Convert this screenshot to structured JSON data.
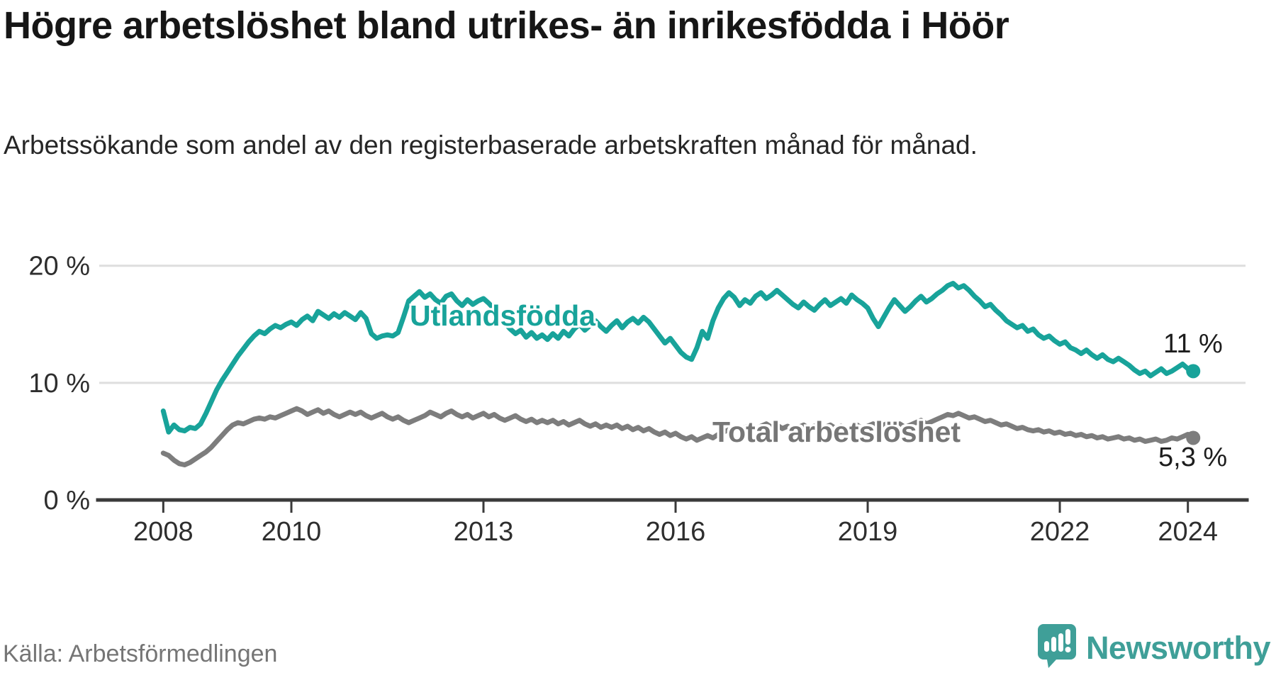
{
  "header": {
    "title": "Högre arbetslöshet bland utrikes- än inrikesfödda i Höör",
    "subtitle": "Arbetssökande som andel av den registerbaserade arbetskraften månad för månad."
  },
  "footer": {
    "source": "Källa: Arbetsförmedlingen",
    "brand_name": "Newsworthy"
  },
  "colors": {
    "series_utlandsfodda": "#18a39a",
    "series_total": "#7d7d7d",
    "grid": "#dedede",
    "axis": "#3a3a3a",
    "brand_teal": "#3f9f98"
  },
  "chart_data": {
    "type": "line",
    "title": "Högre arbetslöshet bland utrikes- än inrikesfödda i Höör",
    "subtitle": "Arbetssökande som andel av den registerbaserade arbetskraften månad för månad.",
    "x_unit": "monthly, Jan 2008 - Feb 2024",
    "x_start_year": 2008,
    "xlim": [
      2007.0,
      2024.9
    ],
    "ylim": [
      0,
      21.8
    ],
    "grid": "horizontal-only",
    "x_ticks": [
      {
        "value": 2008,
        "label": "2008"
      },
      {
        "value": 2010,
        "label": "2010"
      },
      {
        "value": 2013,
        "label": "2013"
      },
      {
        "value": 2016,
        "label": "2016"
      },
      {
        "value": 2019,
        "label": "2019"
      },
      {
        "value": 2022,
        "label": "2022"
      },
      {
        "value": 2024,
        "label": "2024"
      }
    ],
    "y_ticks": [
      {
        "value": 0,
        "label": "0 %"
      },
      {
        "value": 10,
        "label": "10 %"
      },
      {
        "value": 20,
        "label": "20 %"
      }
    ],
    "series": [
      {
        "name": "Utlandsfödda",
        "label_text": "Utlandsfödda",
        "color_key": "series_utlandsfodda",
        "end_label": "11 %",
        "end_value": 11.0,
        "values": [
          7.6,
          5.8,
          6.4,
          6.0,
          5.9,
          6.2,
          6.1,
          6.5,
          7.4,
          8.4,
          9.4,
          10.2,
          10.9,
          11.6,
          12.3,
          12.9,
          13.5,
          14.0,
          14.4,
          14.2,
          14.6,
          14.9,
          14.7,
          15.0,
          15.2,
          14.9,
          15.4,
          15.7,
          15.3,
          16.1,
          15.8,
          15.5,
          15.9,
          15.6,
          16.0,
          15.7,
          15.4,
          16.0,
          15.5,
          14.2,
          13.8,
          14.0,
          14.1,
          14.0,
          14.3,
          15.6,
          17.0,
          17.4,
          17.8,
          17.3,
          17.6,
          17.1,
          16.8,
          17.4,
          17.6,
          17.0,
          16.6,
          17.1,
          16.7,
          17.0,
          17.2,
          16.8,
          16.3,
          15.7,
          15.1,
          14.6,
          14.2,
          14.5,
          13.9,
          14.3,
          13.8,
          14.1,
          13.7,
          14.2,
          13.8,
          14.4,
          14.0,
          14.6,
          15.0,
          14.5,
          14.9,
          15.3,
          14.8,
          14.4,
          14.9,
          15.3,
          14.7,
          15.2,
          15.5,
          15.1,
          15.6,
          15.2,
          14.6,
          14.0,
          13.4,
          13.8,
          13.2,
          12.6,
          12.2,
          12.0,
          13.0,
          14.4,
          13.8,
          15.3,
          16.4,
          17.2,
          17.7,
          17.3,
          16.6,
          17.1,
          16.8,
          17.4,
          17.7,
          17.2,
          17.5,
          17.9,
          17.5,
          17.1,
          16.7,
          16.4,
          16.9,
          16.5,
          16.2,
          16.7,
          17.1,
          16.6,
          16.9,
          17.2,
          16.8,
          17.5,
          17.1,
          16.8,
          16.4,
          15.5,
          14.8,
          15.6,
          16.4,
          17.1,
          16.6,
          16.1,
          16.5,
          17.0,
          17.4,
          16.9,
          17.2,
          17.6,
          17.9,
          18.3,
          18.5,
          18.1,
          18.3,
          17.9,
          17.4,
          17.0,
          16.5,
          16.7,
          16.2,
          15.8,
          15.3,
          15.0,
          14.7,
          14.9,
          14.4,
          14.6,
          14.1,
          13.8,
          14.0,
          13.6,
          13.3,
          13.5,
          13.0,
          12.8,
          12.5,
          12.8,
          12.4,
          12.1,
          12.4,
          12.0,
          11.8,
          12.1,
          11.8,
          11.5,
          11.1,
          10.8,
          11.0,
          10.6,
          10.9,
          11.2,
          10.8,
          11.0,
          11.3,
          11.6,
          11.2,
          11.0
        ]
      },
      {
        "name": "Total arbetslöshet",
        "label_text": "Total arbetslöshet",
        "color_key": "series_total",
        "end_label": "5,3 %",
        "end_value": 5.3,
        "values": [
          4.0,
          3.8,
          3.4,
          3.1,
          3.0,
          3.2,
          3.5,
          3.8,
          4.1,
          4.5,
          5.0,
          5.5,
          6.0,
          6.4,
          6.6,
          6.5,
          6.7,
          6.9,
          7.0,
          6.9,
          7.1,
          7.0,
          7.2,
          7.4,
          7.6,
          7.8,
          7.6,
          7.3,
          7.5,
          7.7,
          7.4,
          7.6,
          7.3,
          7.1,
          7.3,
          7.5,
          7.3,
          7.5,
          7.2,
          7.0,
          7.2,
          7.4,
          7.1,
          6.9,
          7.1,
          6.8,
          6.6,
          6.8,
          7.0,
          7.2,
          7.5,
          7.3,
          7.1,
          7.4,
          7.6,
          7.3,
          7.1,
          7.3,
          7.0,
          7.2,
          7.4,
          7.1,
          7.3,
          7.0,
          6.8,
          7.0,
          7.2,
          6.9,
          6.7,
          6.9,
          6.6,
          6.8,
          6.6,
          6.8,
          6.5,
          6.7,
          6.4,
          6.6,
          6.8,
          6.5,
          6.3,
          6.5,
          6.2,
          6.4,
          6.2,
          6.4,
          6.1,
          6.3,
          6.0,
          6.2,
          5.9,
          6.1,
          5.8,
          5.6,
          5.8,
          5.5,
          5.7,
          5.4,
          5.2,
          5.4,
          5.1,
          5.3,
          5.5,
          5.3,
          5.6,
          5.8,
          6.0,
          6.2,
          6.0,
          6.2,
          6.4,
          6.1,
          6.3,
          6.5,
          6.2,
          6.4,
          6.1,
          6.3,
          6.0,
          6.2,
          6.4,
          6.1,
          6.3,
          6.0,
          6.2,
          6.4,
          6.1,
          6.3,
          6.0,
          6.2,
          6.4,
          6.1,
          6.3,
          6.5,
          6.2,
          6.4,
          6.6,
          6.3,
          6.5,
          6.2,
          6.4,
          6.6,
          6.8,
          6.5,
          6.7,
          6.9,
          7.1,
          7.3,
          7.2,
          7.4,
          7.2,
          7.0,
          7.1,
          6.9,
          6.7,
          6.8,
          6.6,
          6.4,
          6.5,
          6.3,
          6.1,
          6.2,
          6.0,
          5.9,
          6.0,
          5.8,
          5.9,
          5.7,
          5.8,
          5.6,
          5.7,
          5.5,
          5.6,
          5.4,
          5.5,
          5.3,
          5.4,
          5.2,
          5.3,
          5.4,
          5.2,
          5.3,
          5.1,
          5.2,
          5.0,
          5.1,
          5.2,
          5.0,
          5.1,
          5.3,
          5.2,
          5.4,
          5.6,
          5.3
        ]
      }
    ]
  }
}
